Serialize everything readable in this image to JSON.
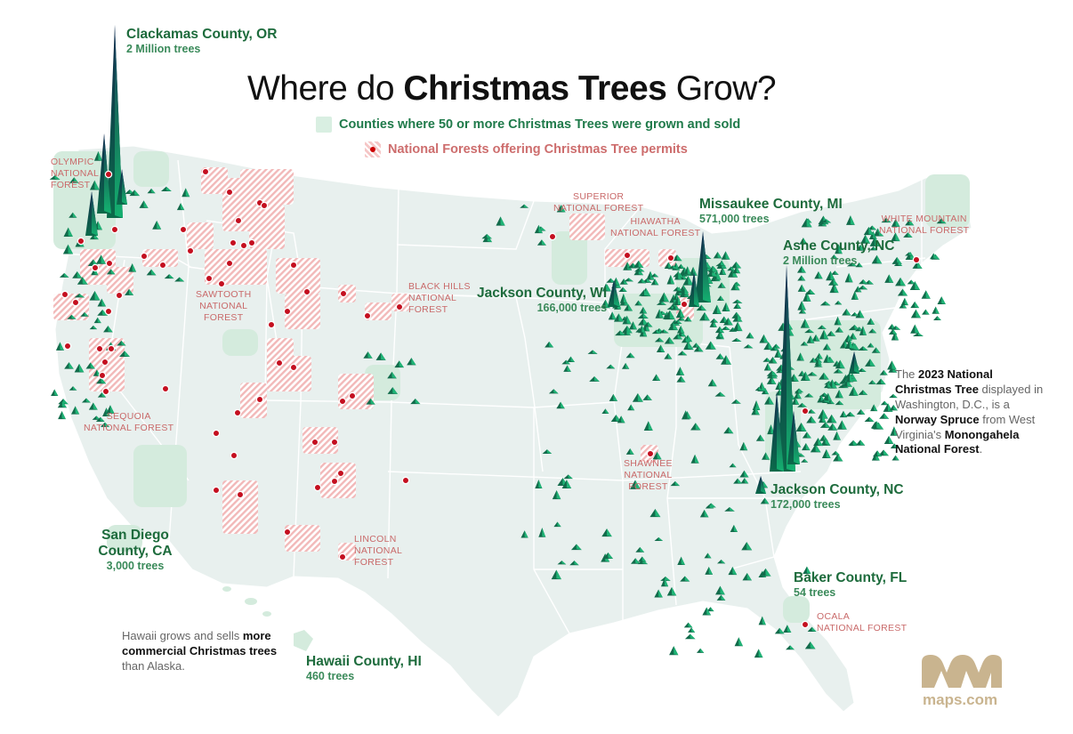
{
  "title": {
    "part1": "Where do ",
    "bold": "Christmas Trees",
    "part2": " Grow?"
  },
  "legend": {
    "counties": "Counties where 50 or more Christmas Trees were grown and sold",
    "forests": "National Forests offering Christmas Tree permits"
  },
  "counties": [
    {
      "name": "Clackamas County, OR",
      "value": "2 Million trees"
    },
    {
      "name": "Missaukee County, MI",
      "value": "571,000 trees"
    },
    {
      "name": "Ashe County, NC",
      "value": "2 Million trees"
    },
    {
      "name": "Jackson County, WI",
      "value": "166,000 trees"
    },
    {
      "name": "Jackson County, NC",
      "value": "172,000 trees"
    },
    {
      "name": "San Diego County, CA",
      "value": "3,000 trees"
    },
    {
      "name": "Baker County, FL",
      "value": "54 trees"
    },
    {
      "name": "Hawaii County, HI",
      "value": "460 trees"
    }
  ],
  "forests": [
    {
      "l1": "OLYMPIC",
      "l2": "NATIONAL",
      "l3": "FOREST"
    },
    {
      "l1": "SUPERIOR",
      "l2": "NATIONAL FOREST",
      "l3": ""
    },
    {
      "l1": "HIAWATHA",
      "l2": "NATIONAL FOREST",
      "l3": ""
    },
    {
      "l1": "WHITE MOUNTAIN",
      "l2": "NATIONAL FOREST",
      "l3": ""
    },
    {
      "l1": "BLACK HILLS",
      "l2": "NATIONAL",
      "l3": "FOREST"
    },
    {
      "l1": "SAWTOOTH",
      "l2": "NATIONAL",
      "l3": "FOREST"
    },
    {
      "l1": "SEQUOIA",
      "l2": "NATIONAL FOREST",
      "l3": ""
    },
    {
      "l1": "SHAWNEE",
      "l2": "NATIONAL",
      "l3": "FOREST"
    },
    {
      "l1": "LINCOLN",
      "l2": "NATIONAL",
      "l3": "FOREST"
    },
    {
      "l1": "OCALA",
      "l2": "NATIONAL FOREST",
      "l3": ""
    }
  ],
  "national_tree_note": {
    "a": "The ",
    "b": "2023 National Christmas Tree",
    "c": " displayed in Washington, D.C., is a ",
    "d": "Norway Spruce",
    "e": " from West Virginia's ",
    "f": "Monongahela National Forest",
    "g": "."
  },
  "hawaii_note": {
    "a": "Hawaii grows and sells ",
    "b": "more commercial Christmas trees",
    "c": " than Alaska."
  },
  "brand": "maps.com",
  "colors": {
    "land": "#e8f0ee",
    "county_fill": "#d4ebdd",
    "forest_hatch": "#f2b9b9",
    "forest_dot": "#c40f1f",
    "spike_dark": "#17335c",
    "spike_green": "#13a86a",
    "county_label": "#1d6b3c",
    "forest_label": "#c96a6a",
    "brand": "#c9b48f"
  }
}
